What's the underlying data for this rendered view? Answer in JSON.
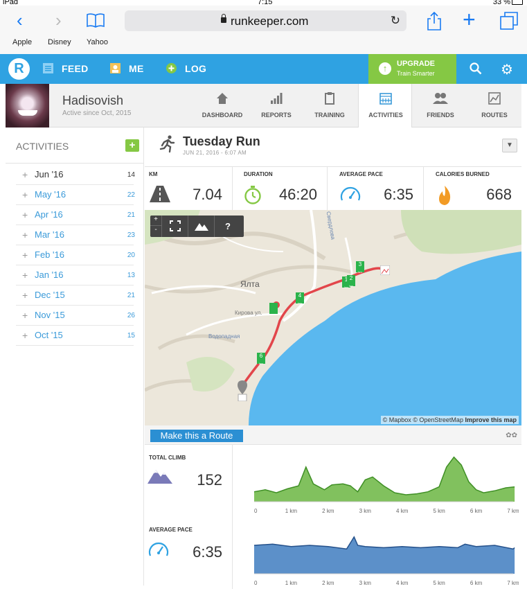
{
  "status": {
    "device": "iPad",
    "time": "7:15",
    "battery": "33 %"
  },
  "browser": {
    "url": "runkeeper.com",
    "favorites": [
      "Apple",
      "Disney",
      "Yahoo"
    ]
  },
  "header": {
    "nav": [
      "FEED",
      "ME",
      "LOG"
    ],
    "upgrade_title": "UPGRADE",
    "upgrade_sub": "Train Smarter"
  },
  "profile": {
    "name": "Hadisovish",
    "since": "Active since Oct, 2015",
    "tabs": [
      "DASHBOARD",
      "REPORTS",
      "TRAINING",
      "ACTIVITIES",
      "FRIENDS",
      "ROUTES"
    ]
  },
  "sidebar": {
    "title": "ACTIVITIES",
    "months": [
      {
        "name": "Jun '16",
        "count": "14"
      },
      {
        "name": "May '16",
        "count": "22"
      },
      {
        "name": "Apr '16",
        "count": "21"
      },
      {
        "name": "Mar '16",
        "count": "23"
      },
      {
        "name": "Feb '16",
        "count": "20"
      },
      {
        "name": "Jan '16",
        "count": "13"
      },
      {
        "name": "Dec '15",
        "count": "21"
      },
      {
        "name": "Nov '15",
        "count": "26"
      },
      {
        "name": "Oct '15",
        "count": "15"
      }
    ]
  },
  "activity": {
    "title": "Tuesday Run",
    "date": "JUN 21, 2016 - 6:07 AM",
    "stats": [
      {
        "label": "KM",
        "value": "7.04"
      },
      {
        "label": "DURATION",
        "value": "46:20"
      },
      {
        "label": "AVERAGE PACE",
        "value": "6:35"
      },
      {
        "label": "CALORIES BURNED",
        "value": "668"
      }
    ]
  },
  "map": {
    "credit": "© Mapbox © OpenStreetMap",
    "improve": "Improve this map",
    "city_label": "Ялта",
    "street1": "Кирова ул.",
    "street2": "Водопадная",
    "street3": "Свердлова",
    "markers": [
      "1",
      "2",
      "3",
      "4",
      "6"
    ],
    "marker_unit": "km",
    "controls": {
      "plus": "+",
      "minus": "-",
      "help": "?"
    }
  },
  "route_button": "Make this a Route",
  "panels": {
    "climb": {
      "label": "TOTAL CLIMB",
      "value": "152"
    },
    "pace": {
      "label": "AVERAGE PACE",
      "value": "6:35"
    }
  },
  "chart_data": [
    {
      "type": "area",
      "title": "",
      "x": [
        0,
        0.3,
        0.6,
        0.9,
        1.2,
        1.4,
        1.6,
        1.9,
        2.1,
        2.4,
        2.6,
        2.8,
        3.0,
        3.2,
        3.5,
        3.8,
        4.1,
        4.4,
        4.7,
        5.0,
        5.2,
        5.4,
        5.6,
        5.8,
        6.0,
        6.2,
        6.5,
        6.8,
        7.04
      ],
      "values": [
        10,
        12,
        9,
        13,
        16,
        35,
        18,
        12,
        17,
        18,
        16,
        10,
        22,
        25,
        16,
        9,
        7,
        8,
        10,
        15,
        35,
        45,
        37,
        20,
        12,
        9,
        11,
        14,
        15
      ],
      "xticks": [
        "0",
        "1 km",
        "2 km",
        "3 km",
        "4 km",
        "5 km",
        "6 km",
        "7 km"
      ],
      "xlim": [
        0,
        7
      ],
      "color": "#6bb642"
    },
    {
      "type": "area",
      "title": "",
      "x": [
        0,
        0.5,
        1,
        1.5,
        2,
        2.5,
        2.7,
        2.8,
        3,
        3.5,
        4,
        4.5,
        5,
        5.5,
        5.7,
        6,
        6.5,
        7,
        7.04
      ],
      "values": [
        6.5,
        6.4,
        6.6,
        6.5,
        6.6,
        6.8,
        5.8,
        6.5,
        6.6,
        6.7,
        6.6,
        6.7,
        6.6,
        6.7,
        6.4,
        6.6,
        6.5,
        6.8,
        6.7
      ],
      "xticks": [
        "0",
        "1 km",
        "2 km",
        "3 km",
        "4 km",
        "5 km",
        "6 km",
        "7 km"
      ],
      "xlim": [
        0,
        7
      ],
      "color": "#3f7dbf"
    }
  ]
}
